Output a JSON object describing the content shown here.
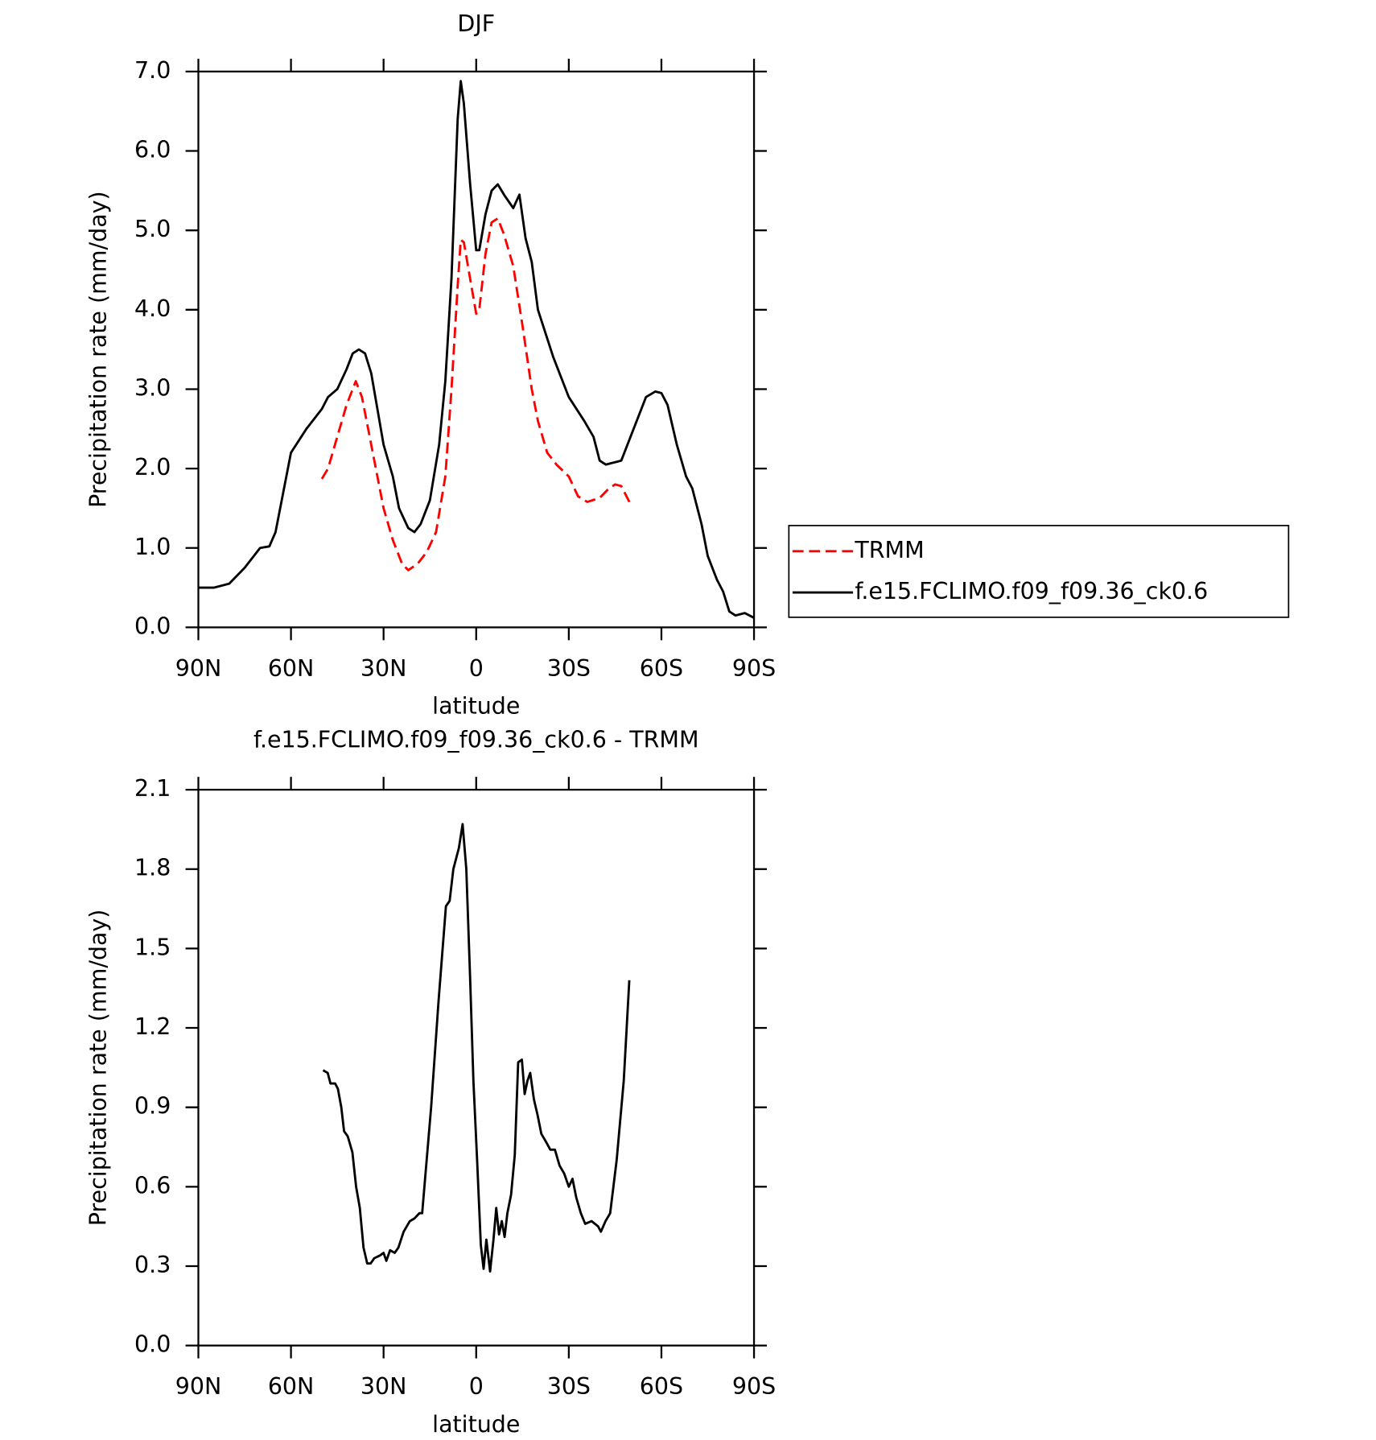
{
  "chart_data": [
    {
      "type": "line",
      "title": "DJF",
      "xlabel": "latitude",
      "ylabel": "Precipitation rate (mm/day)",
      "xlim": [
        90,
        -90
      ],
      "ylim": [
        0,
        7
      ],
      "xticks": [
        {
          "value": 90,
          "label": "90N"
        },
        {
          "value": 60,
          "label": "60N"
        },
        {
          "value": 30,
          "label": "30N"
        },
        0,
        {
          "value": -30,
          "label": "30S"
        },
        {
          "value": -60,
          "label": "60S"
        },
        {
          "value": -90,
          "label": "90S"
        }
      ],
      "yticks": [
        {
          "value": 0,
          "label": "0.0"
        },
        {
          "value": 1,
          "label": "1.0"
        },
        {
          "value": 2,
          "label": "2.0"
        },
        {
          "value": 3,
          "label": "3.0"
        },
        {
          "value": 4,
          "label": "4.0"
        },
        {
          "value": 5,
          "label": "5.0"
        },
        {
          "value": 6,
          "label": "6.0"
        },
        {
          "value": 7,
          "label": "7.0"
        }
      ],
      "legend": "outside-right",
      "series": [
        {
          "name": "TRMM",
          "color": "#ff0000",
          "line_style": "dashed",
          "x": [
            50,
            48,
            45,
            42,
            39,
            37,
            34,
            30,
            27,
            24,
            22,
            19,
            16,
            13,
            10,
            8,
            6,
            5,
            4,
            2,
            0,
            -1,
            -3,
            -5,
            -7,
            -9,
            -12,
            -15,
            -18,
            -20,
            -23,
            -26,
            -30,
            -33,
            -36,
            -40,
            -43,
            -45,
            -47,
            -50
          ],
          "values": [
            1.87,
            2.0,
            2.4,
            2.8,
            3.1,
            2.9,
            2.3,
            1.5,
            1.1,
            0.8,
            0.72,
            0.8,
            0.95,
            1.2,
            1.9,
            3.0,
            4.3,
            4.88,
            4.85,
            4.4,
            3.95,
            4.0,
            4.7,
            5.1,
            5.15,
            4.95,
            4.55,
            3.8,
            3.0,
            2.6,
            2.2,
            2.05,
            1.9,
            1.65,
            1.58,
            1.63,
            1.75,
            1.8,
            1.78,
            1.55
          ]
        },
        {
          "name": "f.e15.FCLIMO.f09_f09.36_ck0.6",
          "color": "#000000",
          "line_style": "solid",
          "x": [
            90,
            85,
            80,
            75,
            70,
            67,
            65,
            63,
            60,
            55,
            50,
            48,
            45,
            42,
            40,
            38,
            36,
            34,
            30,
            27,
            25,
            22,
            20,
            18,
            15,
            12,
            10,
            8,
            6,
            5,
            4,
            2,
            0,
            -1,
            -3,
            -5,
            -7,
            -9,
            -12,
            -14,
            -16,
            -18,
            -20,
            -25,
            -30,
            -35,
            -38,
            -40,
            -42,
            -45,
            -47,
            -50,
            -55,
            -58,
            -60,
            -62,
            -65,
            -68,
            -70,
            -73,
            -75,
            -78,
            -80,
            -82,
            -84,
            -87,
            -90
          ],
          "values": [
            0.5,
            0.5,
            0.55,
            0.75,
            1.0,
            1.02,
            1.2,
            1.6,
            2.2,
            2.5,
            2.75,
            2.9,
            3.0,
            3.25,
            3.45,
            3.5,
            3.45,
            3.2,
            2.3,
            1.9,
            1.5,
            1.25,
            1.2,
            1.3,
            1.6,
            2.3,
            3.1,
            4.4,
            6.4,
            6.88,
            6.6,
            5.6,
            4.75,
            4.75,
            5.2,
            5.5,
            5.58,
            5.45,
            5.28,
            5.45,
            4.9,
            4.6,
            4.0,
            3.4,
            2.9,
            2.6,
            2.4,
            2.1,
            2.05,
            2.08,
            2.1,
            2.4,
            2.9,
            2.97,
            2.95,
            2.8,
            2.3,
            1.9,
            1.75,
            1.3,
            0.9,
            0.6,
            0.45,
            0.2,
            0.15,
            0.18,
            0.12
          ]
        }
      ]
    },
    {
      "type": "line",
      "title": "f.e15.FCLIMO.f09_f09.36_ck0.6 - TRMM",
      "xlabel": "latitude",
      "ylabel": "Precipitation rate (mm/day)",
      "xlim": [
        90,
        -90
      ],
      "ylim": [
        0,
        2.1
      ],
      "xticks": [
        {
          "value": 90,
          "label": "90N"
        },
        {
          "value": 60,
          "label": "60N"
        },
        {
          "value": 30,
          "label": "30N"
        },
        0,
        {
          "value": -30,
          "label": "30S"
        },
        {
          "value": -60,
          "label": "60S"
        },
        {
          "value": -90,
          "label": "90S"
        }
      ],
      "yticks": [
        {
          "value": 0,
          "label": "0.0"
        },
        0.3,
        0.6,
        0.9,
        1.2,
        1.5,
        1.8,
        2.1
      ],
      "color": "#000000",
      "x": [
        49.6,
        48.1,
        47.2,
        45.7,
        44.8,
        43.7,
        42.8,
        41.6,
        40.1,
        38.9,
        37.7,
        36.5,
        35.3,
        34.2,
        33,
        31.2,
        30,
        29.1,
        27.9,
        26.4,
        25.2,
        23.5,
        21.5,
        20,
        18.4,
        17.5,
        14.6,
        12.2,
        9.8,
        8.6,
        7.4,
        5.6,
        4.4,
        3.2,
        2,
        0.9,
        -0.3,
        -1.5,
        -2.4,
        -3.3,
        -4.5,
        -5.6,
        -6.5,
        -7.4,
        -8.3,
        -9.2,
        -10.1,
        -11.3,
        -12.5,
        -13.6,
        -14.8,
        -15.7,
        -16.6,
        -17.5,
        -18.7,
        -19.9,
        -21.1,
        -22.6,
        -24,
        -25.5,
        -27,
        -28.5,
        -30,
        -31.2,
        -32.4,
        -33.9,
        -35.3,
        -37.4,
        -39.5,
        -40.4,
        -41.9,
        -43.4,
        -45.5,
        -47.8,
        -49.6
      ],
      "values": [
        1.04,
        1.03,
        0.99,
        0.99,
        0.97,
        0.9,
        0.81,
        0.79,
        0.73,
        0.6,
        0.52,
        0.37,
        0.31,
        0.31,
        0.33,
        0.34,
        0.35,
        0.32,
        0.36,
        0.35,
        0.37,
        0.43,
        0.47,
        0.48,
        0.5,
        0.5,
        0.9,
        1.3,
        1.66,
        1.68,
        1.8,
        1.88,
        1.97,
        1.8,
        1.4,
        1.0,
        0.7,
        0.38,
        0.29,
        0.4,
        0.28,
        0.4,
        0.52,
        0.42,
        0.47,
        0.41,
        0.5,
        0.57,
        0.72,
        1.07,
        1.08,
        0.95,
        1.0,
        1.03,
        0.93,
        0.87,
        0.8,
        0.77,
        0.74,
        0.74,
        0.68,
        0.65,
        0.6,
        0.63,
        0.56,
        0.5,
        0.46,
        0.47,
        0.45,
        0.43,
        0.47,
        0.5,
        0.7,
        1.0,
        1.38
      ]
    }
  ]
}
